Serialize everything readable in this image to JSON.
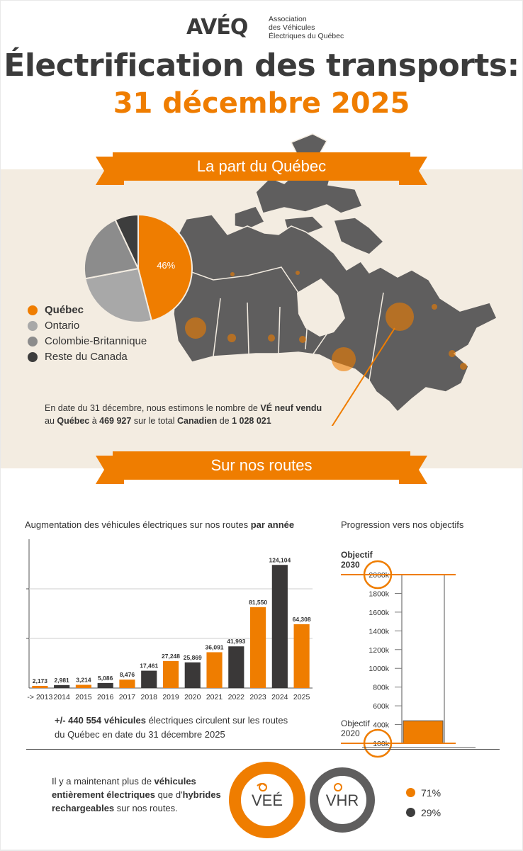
{
  "header": {
    "logo_text": "AVÉQ",
    "org_line1": "Association",
    "org_line2": "des Véhicules",
    "org_line3": "Électriques du Québec",
    "title": "Électrification des transports:",
    "subtitle": "31 décembre 2025"
  },
  "colors": {
    "accent": "#ef7d00",
    "dark": "#3a3838",
    "grey_map": "#5f5e5e",
    "ontario": "#a8a8a8",
    "bc": "#8c8c8c",
    "rest": "#3d3d3d",
    "band": "#f3ece1"
  },
  "section1": {
    "ribbon": "La part du Québec",
    "pie": {
      "slices": [
        {
          "name": "Québec",
          "value": 46,
          "label": "46%",
          "color": "#ef7d00"
        },
        {
          "name": "Ontario",
          "value": 26,
          "color": "#a8a8a8"
        },
        {
          "name": "Colombie-Britannique",
          "value": 21,
          "color": "#8c8c8c"
        },
        {
          "name": "Reste du Canada",
          "value": 7,
          "color": "#3d3d3d"
        }
      ]
    },
    "legend": [
      {
        "label": "Québec",
        "color": "#ef7d00",
        "bold": true
      },
      {
        "label": "Ontario",
        "color": "#a8a8a8"
      },
      {
        "label": "Colombie-Britannique",
        "color": "#8c8c8c"
      },
      {
        "label": "Reste du Canada",
        "color": "#3d3d3d"
      }
    ],
    "estimate": {
      "t1": "En date du 31 décembre, nous estimons le nombre de ",
      "b1": "VÉ neuf vendu",
      "t2": "au ",
      "b2": "Québec",
      "t3": " à ",
      "b3": "469 927",
      "t4": " sur le total ",
      "b4": "Canadien",
      "t5": " de ",
      "b5": "1 028 021"
    }
  },
  "section2": {
    "ribbon": "Sur nos routes",
    "bar_title_prefix": "Augmentation des véhicules électriques sur nos routes ",
    "bar_title_bold": "par année",
    "progress_title": "Progression vers nos objectifs",
    "summary_bold": "+/- 440 554 véhicules",
    "summary_rest": " électriques circulent sur les routes du Québec en date du 31 décembre 2025"
  },
  "chart_data": [
    {
      "type": "bar",
      "categories": [
        "-> 2013",
        "2014",
        "2015",
        "2016",
        "2017",
        "2018",
        "2019",
        "2020",
        "2021",
        "2022",
        "2023",
        "2024",
        "2025"
      ],
      "values": [
        2173,
        2981,
        3214,
        5086,
        8476,
        17461,
        27248,
        25869,
        36091,
        41993,
        81550,
        124104,
        64308
      ],
      "value_labels": [
        "2,173",
        "2,981",
        "3,214",
        "5,086",
        "8,476",
        "17,461",
        "27,248",
        "25,869",
        "36,091",
        "41,993",
        "81,550",
        "124,104",
        "64,308"
      ],
      "colors": [
        "#ef7d00",
        "#3a3838",
        "#ef7d00",
        "#3a3838",
        "#ef7d00",
        "#3a3838",
        "#ef7d00",
        "#3a3838",
        "#ef7d00",
        "#3a3838",
        "#ef7d00",
        "#3a3838",
        "#ef7d00"
      ],
      "ylim": [
        0,
        150000
      ],
      "grid": true,
      "title": "Augmentation des véhicules électriques sur nos routes par année"
    },
    {
      "type": "bar",
      "title": "Progression vers nos objectifs",
      "ticks": [
        "2000k",
        "1800k",
        "1600k",
        "1400k",
        "1200k",
        "1000k",
        "800k",
        "600k",
        "400k",
        "100k"
      ],
      "tick_values": [
        2000,
        1800,
        1600,
        1400,
        1200,
        1000,
        800,
        600,
        400,
        100
      ],
      "value": 440.554,
      "ylim": [
        100,
        2000
      ],
      "units": "k",
      "goal_2030_label_1": "Objectif",
      "goal_2030_label_2": "2030",
      "goal_2020_label_1": "Objectif",
      "goal_2020_label_2": "2020"
    }
  ],
  "section3": {
    "text_1": "Il y a maintenant plus de ",
    "bold_1": "véhicules entièrement électriques",
    "text_2": " que d'",
    "bold_2": "hybrides rechargeables",
    "text_3": " sur nos routes.",
    "vee_label": "VEÉ",
    "vhr_label": "VHR",
    "vee_pct": "71%",
    "vhr_pct": "29%",
    "vee_value": 71,
    "vhr_value": 29
  }
}
